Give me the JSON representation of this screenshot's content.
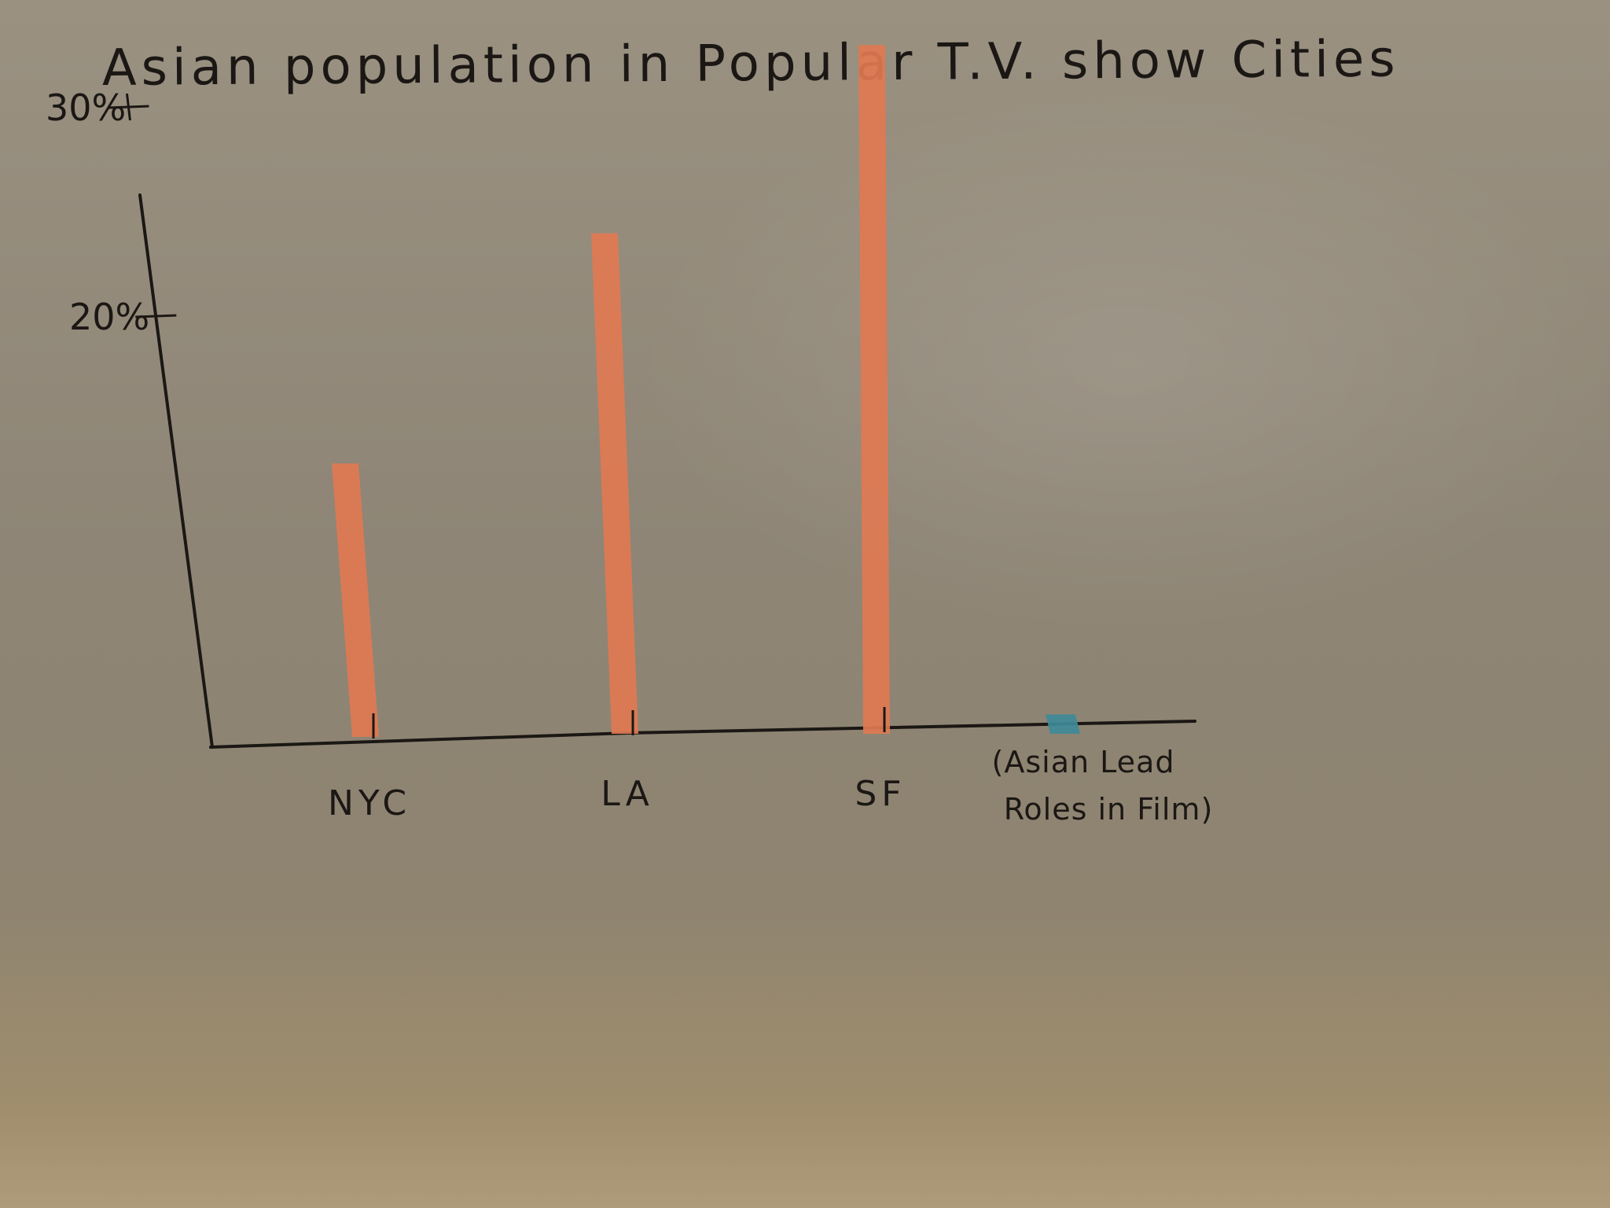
{
  "chart_data": {
    "type": "bar",
    "title": "Asian population in Popular T.V. show Cities",
    "xlabel": "",
    "ylabel": "",
    "categories": [
      "NYC",
      "LA",
      "SF",
      "(Asian Lead Roles in Film)"
    ],
    "values": [
      13,
      24,
      33,
      1
    ],
    "ylim": [
      0,
      36
    ],
    "yticks": [
      20,
      30
    ],
    "ytick_labels": [
      "20%",
      "30%"
    ],
    "grid": false,
    "colors": [
      "#e07a52",
      "#e07a52",
      "#e07a52",
      "#3f8a98"
    ],
    "axis_color": "#1b1714",
    "note_lines": [
      "(Asian Lead",
      "Roles in Film)"
    ]
  }
}
